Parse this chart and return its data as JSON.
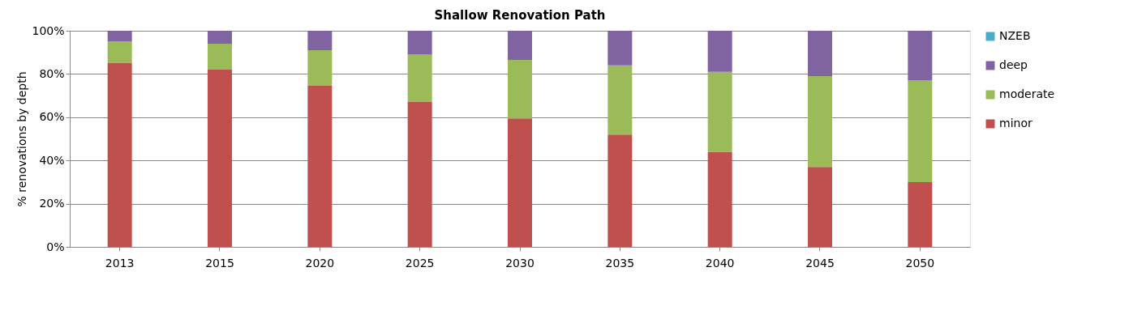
{
  "chart_data": {
    "type": "bar",
    "title": "Shallow Renovation Path",
    "ylabel": "% renovations by depth",
    "categories": [
      "2013",
      "2015",
      "2020",
      "2025",
      "2030",
      "2035",
      "2040",
      "2045",
      "2050"
    ],
    "stacked": true,
    "series": [
      {
        "name": "minor",
        "color": "#c0504d",
        "values": [
          85,
          82,
          74.5,
          67,
          59.5,
          52,
          44,
          37,
          30
        ]
      },
      {
        "name": "moderate",
        "color": "#9bbb59",
        "values": [
          10,
          12,
          16.5,
          22,
          27,
          32,
          37,
          42,
          47
        ]
      },
      {
        "name": "deep",
        "color": "#8064a2",
        "values": [
          5,
          6,
          9,
          11,
          13.5,
          16,
          19,
          21,
          23
        ]
      },
      {
        "name": "NZEB",
        "color": "#4bacc6",
        "values": [
          0,
          0,
          0,
          0,
          0,
          0,
          0,
          0,
          0
        ]
      }
    ],
    "ylim": [
      0,
      100
    ],
    "yticks": [
      {
        "value": 0,
        "label": "0%"
      },
      {
        "value": 20,
        "label": "20%"
      },
      {
        "value": 40,
        "label": "40%"
      },
      {
        "value": 60,
        "label": "60%"
      },
      {
        "value": 80,
        "label": "80%"
      },
      {
        "value": 100,
        "label": "100%"
      }
    ],
    "grid": "y",
    "legend": "right"
  }
}
